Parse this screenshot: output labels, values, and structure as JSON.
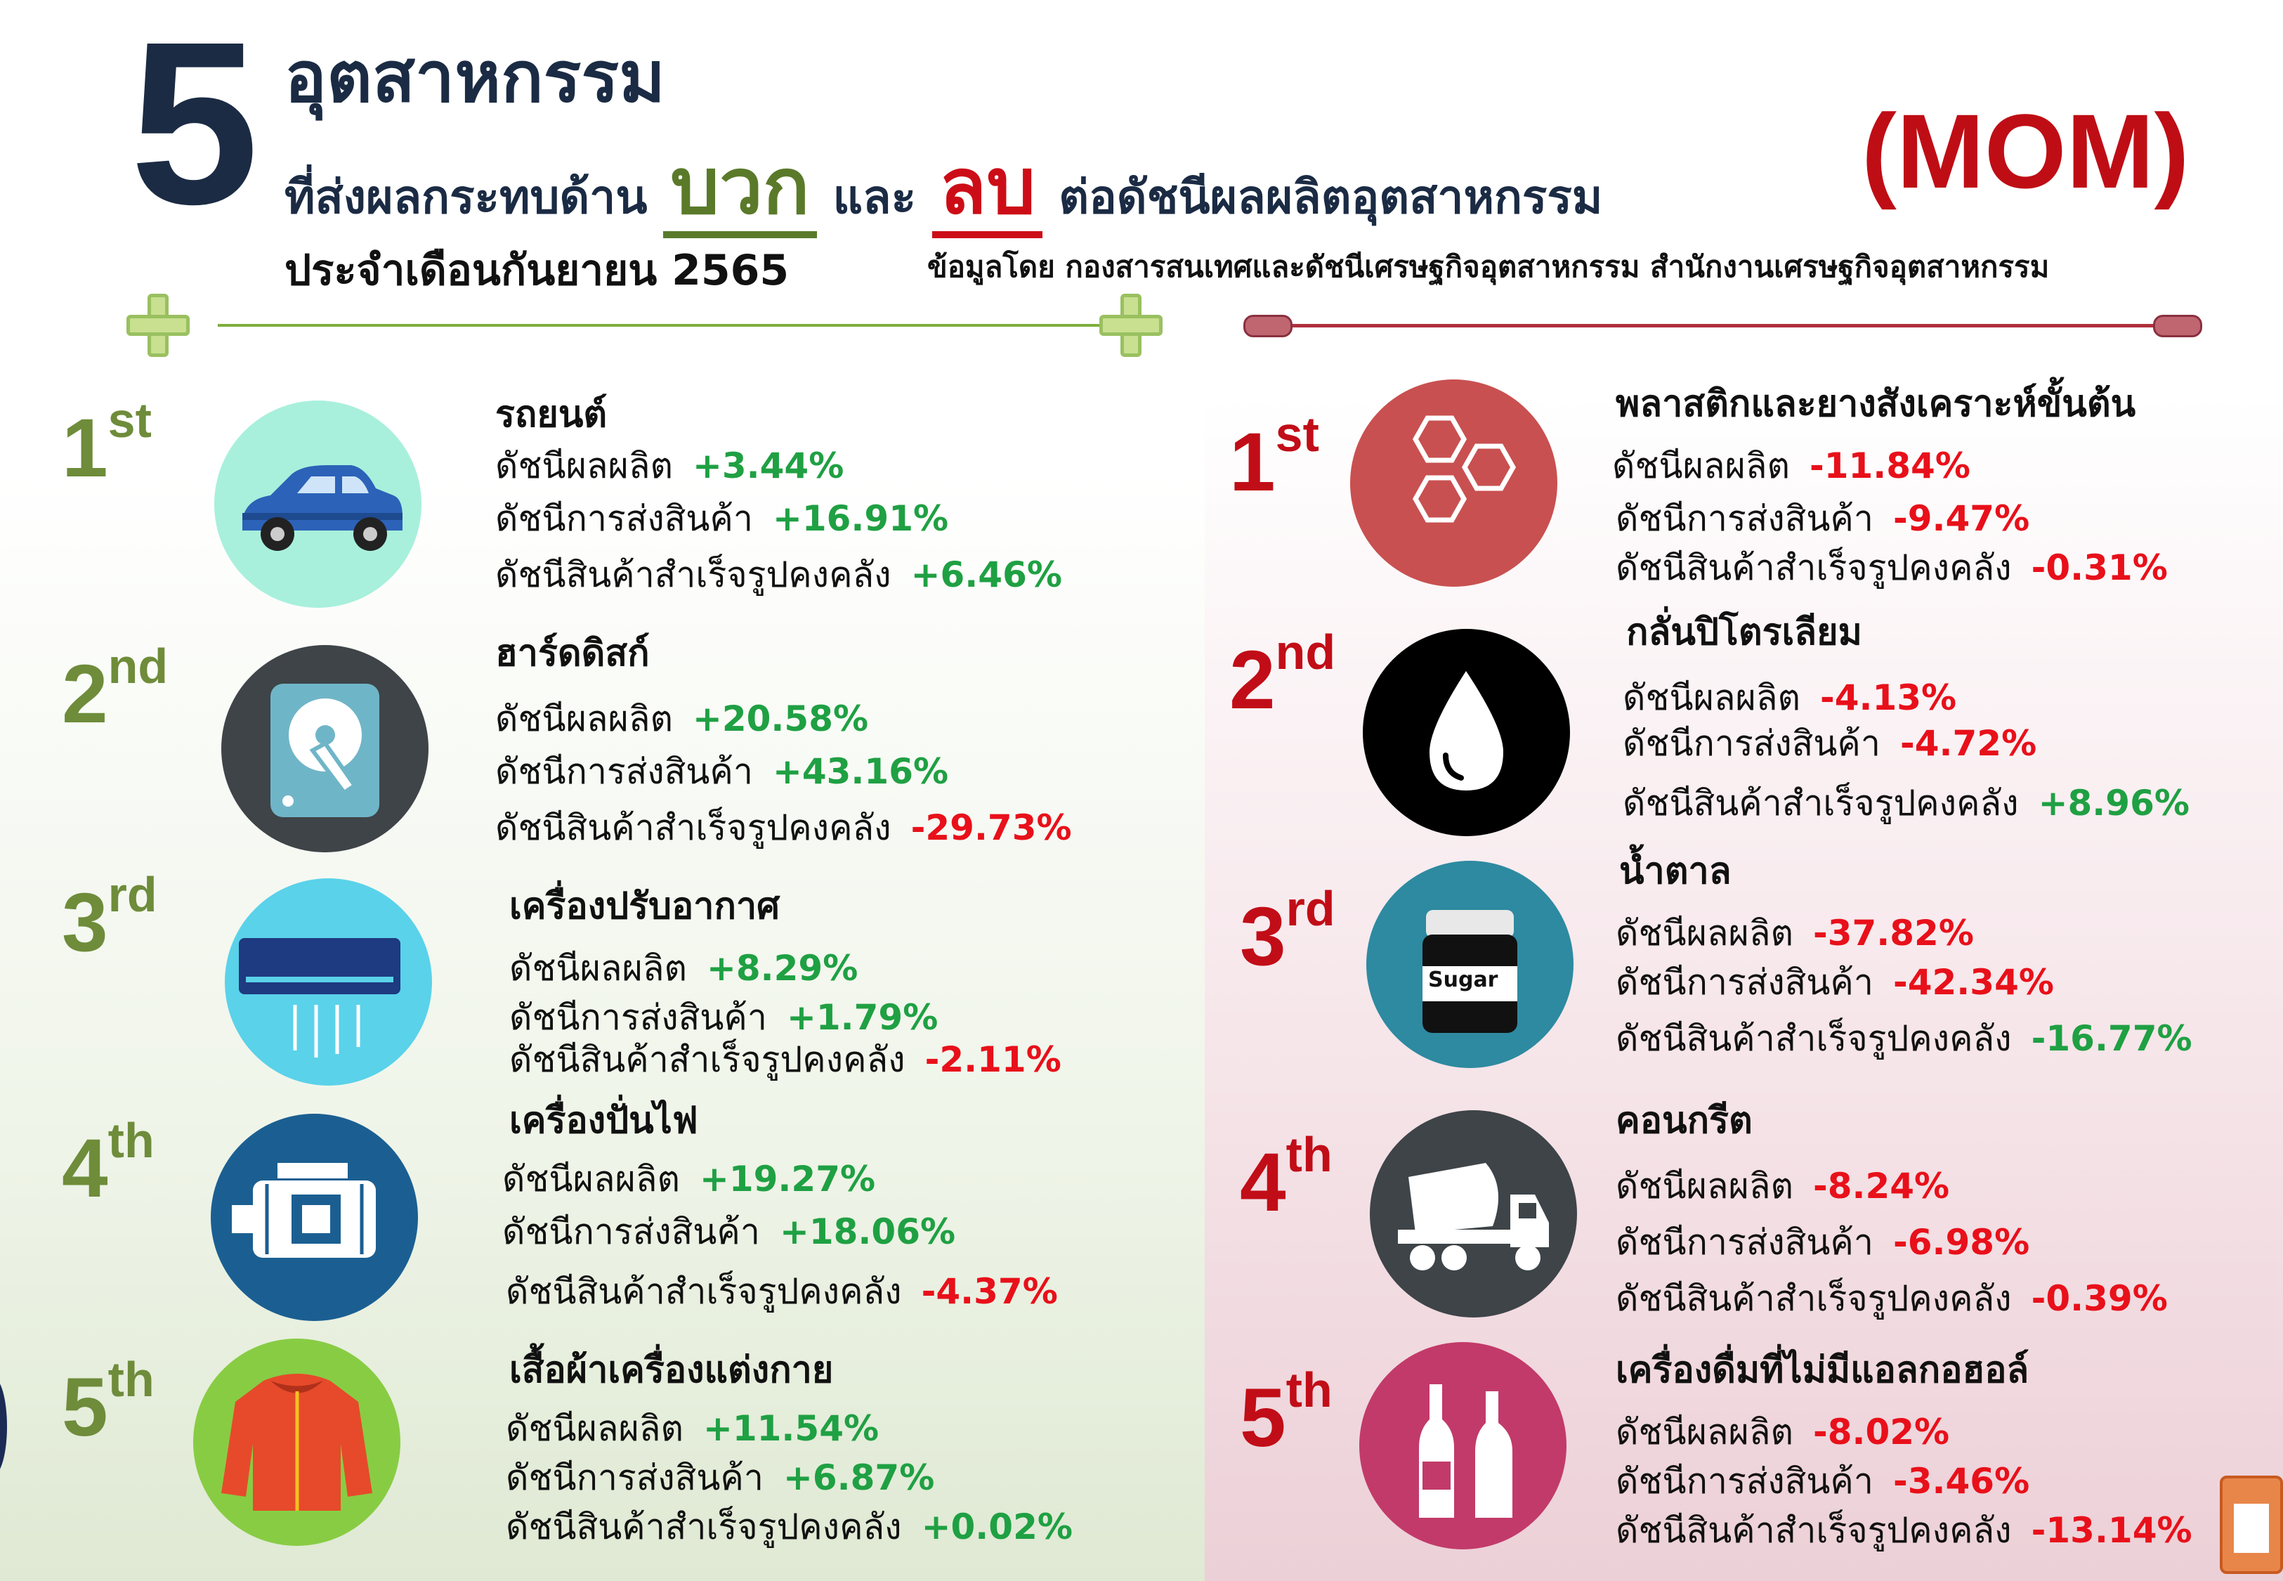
{
  "header": {
    "number": "5",
    "line1": "อุตสาหกรรม",
    "line2_pre": "ที่ส่งผลกระทบด้าน",
    "positive_word": "บวก",
    "line2_mid": "และ",
    "negative_word": "ลบ",
    "line2_post": "ต่อดัชนีผลผลิตอุตสาหกรรม",
    "period": "ประจำเดือนกันยายน 2565",
    "mode": "(MOM)",
    "source": "ข้อมูลโดย กองสารสนเทศและดัชนีเศรษฐกิจอุตสาหกรรม สำนักงานเศรษฐกิจอุตสาหกรรม"
  },
  "colors": {
    "positive": "#1fa043",
    "negative": "#e8101a",
    "rank_left": "#6e8c3a",
    "rank_right": "#c10d17",
    "navy": "#1b2b44"
  },
  "metric_labels": {
    "production": "ดัชนีผลผลิต",
    "shipment": "ดัชนีการส่งสินค้า",
    "inventory": "ดัชนีสินค้าสำเร็จรูปคงคลัง"
  },
  "positive": [
    {
      "rank": "1",
      "suffix": "st",
      "icon": "car-icon",
      "name": "รถยนต์",
      "production": "+3.44%",
      "shipment": "+16.91%",
      "inventory": "+6.46%"
    },
    {
      "rank": "2",
      "suffix": "nd",
      "icon": "hard-disk-icon",
      "name": "ฮาร์ดดิสก์",
      "production": "+20.58%",
      "shipment": "+43.16%",
      "inventory": "-29.73%"
    },
    {
      "rank": "3",
      "suffix": "rd",
      "icon": "air-conditioner-icon",
      "name": "เครื่องปรับอากาศ",
      "production": "+8.29%",
      "shipment": "+1.79%",
      "inventory": "-2.11%"
    },
    {
      "rank": "4",
      "suffix": "th",
      "icon": "generator-motor-icon",
      "name": "เครื่องปั่นไฟ",
      "production": "+19.27%",
      "shipment": "+18.06%",
      "inventory": "-4.37%"
    },
    {
      "rank": "5",
      "suffix": "th",
      "icon": "jacket-icon",
      "name": "เสื้อผ้าเครื่องแต่งกาย",
      "production": "+11.54%",
      "shipment": "+6.87%",
      "inventory": "+0.02%"
    }
  ],
  "negative": [
    {
      "rank": "1",
      "suffix": "st",
      "icon": "hexagons-icon",
      "name": "พลาสติกและยางสังเคราะห์ขั้นต้น",
      "production": "-11.84%",
      "shipment": "-9.47%",
      "inventory": "-0.31%"
    },
    {
      "rank": "2",
      "suffix": "nd",
      "icon": "oil-drop-icon",
      "name": "กลั่นปิโตรเลียม",
      "production": "-4.13%",
      "shipment": "-4.72%",
      "inventory": "+8.96%"
    },
    {
      "rank": "3",
      "suffix": "rd",
      "icon": "sugar-jar-icon",
      "name": "น้ำตาล",
      "sugar_label": "Sugar",
      "production": "-37.82%",
      "shipment": "-42.34%",
      "inventory": "-16.77%"
    },
    {
      "rank": "4",
      "suffix": "th",
      "icon": "concrete-truck-icon",
      "name": "คอนกรีต",
      "production": "-8.24%",
      "shipment": "-6.98%",
      "inventory": "-0.39%"
    },
    {
      "rank": "5",
      "suffix": "th",
      "icon": "bottles-icon",
      "name": "เครื่องดื่มที่ไม่มีแอลกอฮอล์",
      "production": "-8.02%",
      "shipment": "-3.46%",
      "inventory": "-13.14%"
    }
  ]
}
